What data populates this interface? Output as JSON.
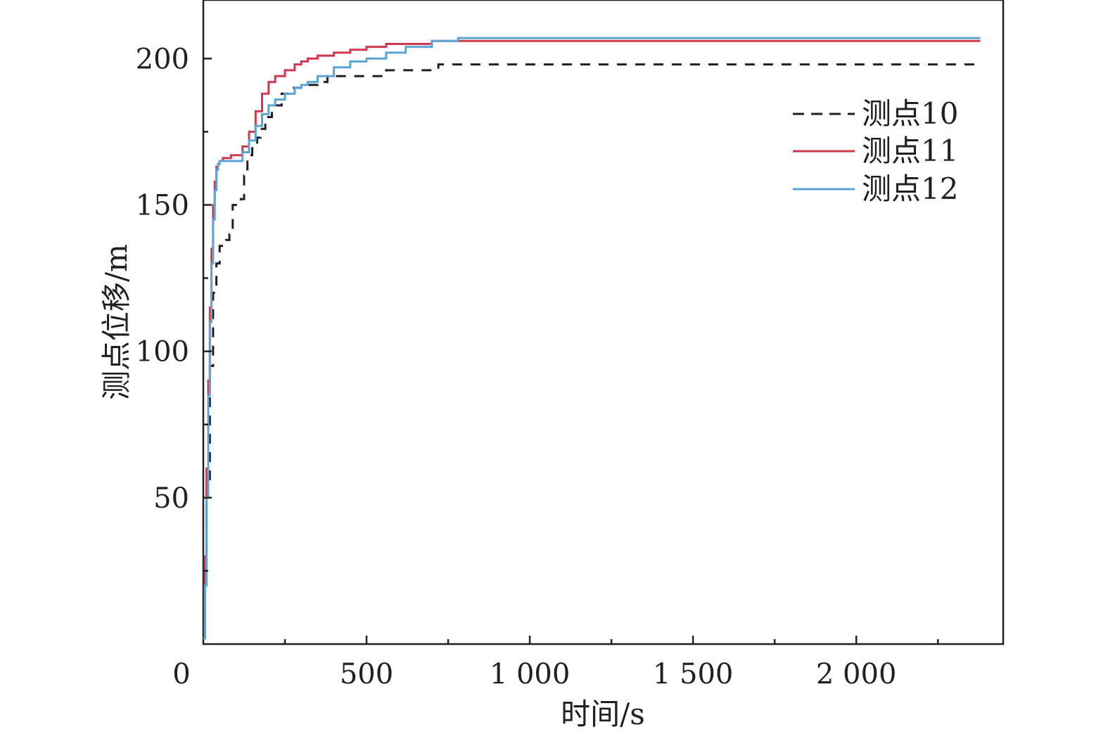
{
  "chart_data": {
    "type": "line",
    "xlabel": "时间/s",
    "ylabel": "测点位移/m",
    "xlim": [
      0,
      2450
    ],
    "ylim": [
      0,
      220
    ],
    "x_ticks": [
      0,
      500,
      1000,
      1500,
      2000
    ],
    "x_tick_labels": [
      "0",
      "500",
      "1 000",
      "1 500",
      "2 000"
    ],
    "x_minor_ticks": [
      250,
      750,
      1250,
      1750,
      2250
    ],
    "y_ticks": [
      50,
      100,
      150,
      200
    ],
    "y_tick_labels": [
      "50",
      "100",
      "150",
      "200"
    ],
    "y_minor_ticks": [
      25,
      75,
      125,
      175
    ],
    "grid": false,
    "legend_position": "top-right",
    "series": [
      {
        "name": "测点10",
        "color": "#231f20",
        "dash": "dashed",
        "x": [
          0,
          5,
          10,
          20,
          30,
          40,
          50,
          65,
          70,
          80,
          90,
          110,
          115,
          125,
          135,
          150,
          165,
          175,
          190,
          210,
          240,
          270,
          300,
          350,
          380,
          450,
          560,
          720,
          1000,
          1500,
          2000,
          2380
        ],
        "y": [
          2,
          25,
          55,
          95,
          120,
          130,
          136,
          136,
          138,
          140,
          150,
          150,
          152,
          160,
          167,
          170,
          173,
          176,
          180,
          184,
          188,
          190,
          191,
          192,
          194,
          194,
          196,
          198,
          198,
          198,
          198,
          198
        ]
      },
      {
        "name": "测点11",
        "color": "#d1384e",
        "dash": "solid",
        "x": [
          0,
          5,
          10,
          15,
          20,
          25,
          30,
          35,
          40,
          45,
          50,
          60,
          70,
          85,
          100,
          120,
          140,
          160,
          180,
          200,
          220,
          250,
          280,
          300,
          320,
          350,
          400,
          450,
          500,
          560,
          620,
          700,
          780,
          1000,
          1500,
          2000,
          2380
        ],
        "y": [
          2,
          30,
          60,
          90,
          115,
          135,
          150,
          158,
          163,
          164,
          165,
          166,
          166,
          167,
          167,
          170,
          175,
          182,
          188,
          192,
          194,
          196,
          198,
          199,
          200,
          201,
          202,
          203,
          204,
          205,
          205,
          206,
          206,
          206,
          206,
          206,
          206
        ]
      },
      {
        "name": "测点12",
        "color": "#5aa5d6",
        "dash": "solid",
        "x": [
          0,
          5,
          10,
          15,
          20,
          25,
          30,
          35,
          40,
          45,
          50,
          60,
          70,
          85,
          100,
          120,
          140,
          160,
          180,
          200,
          220,
          250,
          280,
          300,
          320,
          350,
          400,
          450,
          500,
          560,
          620,
          700,
          780,
          1000,
          1500,
          2000,
          2380
        ],
        "y": [
          2,
          20,
          50,
          85,
          110,
          130,
          145,
          155,
          162,
          164,
          165,
          165,
          165,
          165,
          165,
          168,
          172,
          177,
          181,
          184,
          186,
          188,
          190,
          191,
          192,
          194,
          197,
          199,
          200,
          202,
          204,
          206,
          207,
          207,
          207,
          207,
          207
        ]
      }
    ]
  }
}
